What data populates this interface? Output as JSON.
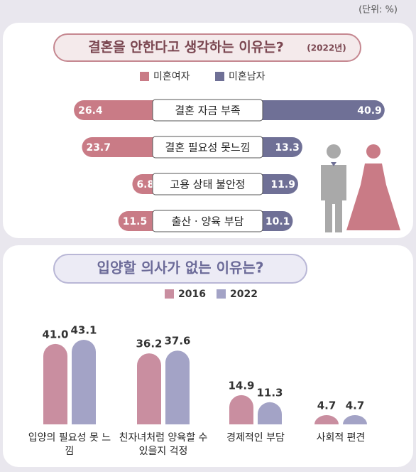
{
  "unit_note": "(단위: %)",
  "chart_data": [
    {
      "type": "butterfly",
      "title": "결혼을 안한다고 생각하는 이유는?",
      "subtitle": "(2022년)",
      "categories": [
        "결혼 자금 부족",
        "결혼 필요성 못느낌",
        "고용 상태 불안정",
        "출산 · 양육 부담"
      ],
      "series": [
        {
          "name": "미혼여자",
          "color": "#c97b86",
          "values": [
            26.4,
            23.7,
            6.8,
            11.5
          ]
        },
        {
          "name": "미혼남자",
          "color": "#6f7096",
          "values": [
            40.9,
            13.3,
            11.9,
            10.1
          ]
        }
      ]
    },
    {
      "type": "bar",
      "title": "입양할 의사가 없는 이유는?",
      "categories": [
        "입양의 필요성 못 느낌",
        "친자녀처럼 양육할 수 있을지 걱정",
        "경제적인 부담",
        "사회적 편견"
      ],
      "series": [
        {
          "name": "2016",
          "color": "#c98ea0",
          "values": [
            41.0,
            36.2,
            14.9,
            4.7
          ],
          "value_labels": [
            "41.0",
            "36.2",
            "14.9",
            "4.7"
          ]
        },
        {
          "name": "2022",
          "color": "#a3a3c6",
          "values": [
            43.1,
            37.6,
            11.3,
            4.7
          ],
          "value_labels": [
            "43.1",
            "37.6",
            "11.3",
            "4.7"
          ]
        }
      ]
    }
  ]
}
